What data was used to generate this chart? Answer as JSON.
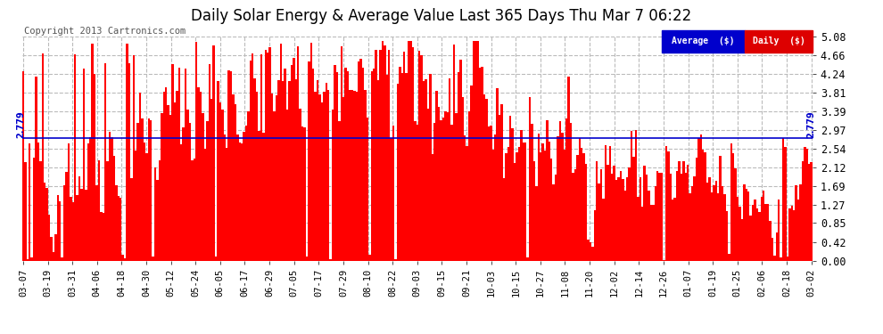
{
  "title": "Daily Solar Energy & Average Value Last 365 Days Thu Mar 7 06:22",
  "copyright": "Copyright 2013 Cartronics.com",
  "average_value": 2.779,
  "ylim": [
    0.0,
    5.08
  ],
  "yticks": [
    0.0,
    0.42,
    0.85,
    1.27,
    1.69,
    2.12,
    2.54,
    2.97,
    3.39,
    3.81,
    4.24,
    4.66,
    5.08
  ],
  "bar_color": "#ff0000",
  "average_line_color": "#0000cc",
  "background_color": "#ffffff",
  "plot_bg_color": "#ffffff",
  "grid_color": "#bbbbbb",
  "title_fontsize": 12,
  "legend_avg_color": "#0000cc",
  "legend_daily_color": "#dd0000",
  "x_tick_labels": [
    "03-07",
    "03-19",
    "03-31",
    "04-06",
    "04-18",
    "04-30",
    "05-12",
    "05-24",
    "06-05",
    "06-17",
    "06-29",
    "07-05",
    "07-17",
    "07-29",
    "08-10",
    "08-22",
    "09-03",
    "09-15",
    "09-21",
    "10-03",
    "10-15",
    "10-27",
    "11-08",
    "11-20",
    "12-02",
    "12-14",
    "12-26",
    "01-07",
    "01-19",
    "01-25",
    "02-06",
    "02-18",
    "03-02"
  ],
  "num_days": 365,
  "seed": 42
}
